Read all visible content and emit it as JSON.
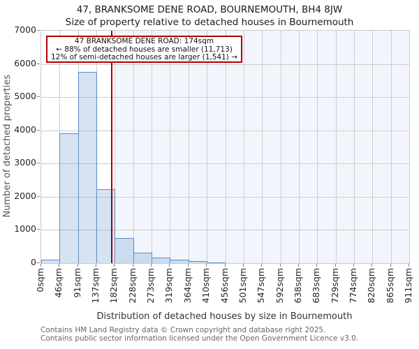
{
  "title": "47, BRANKSOME DENE ROAD, BOURNEMOUTH, BH4 8JW",
  "subtitle": "Size of property relative to detached houses in Bournemouth",
  "annotation": {
    "line1": "47 BRANKSOME DENE ROAD: 174sqm",
    "line2": "← 88% of detached houses are smaller (11,713)",
    "line3": "12% of semi-detached houses are larger (1,541) →"
  },
  "chart_data": {
    "type": "bar",
    "title": "47, BRANKSOME DENE ROAD, BOURNEMOUTH, BH4 8JW — Size of property relative to detached houses in Bournemouth",
    "xlabel": "Distribution of detached houses by size in Bournemouth",
    "ylabel": "Number of detached properties",
    "x_tick_labels": [
      "0sqm",
      "46sqm",
      "91sqm",
      "137sqm",
      "182sqm",
      "228sqm",
      "273sqm",
      "319sqm",
      "364sqm",
      "410sqm",
      "456sqm",
      "501sqm",
      "547sqm",
      "592sqm",
      "638sqm",
      "683sqm",
      "729sqm",
      "774sqm",
      "820sqm",
      "865sqm",
      "911sqm"
    ],
    "bin_edges_sqm": [
      0,
      46,
      91,
      137,
      182,
      228,
      273,
      319,
      364,
      410,
      456,
      501,
      547,
      592,
      638,
      683,
      729,
      774,
      820,
      865,
      911
    ],
    "categories": [
      "0-46",
      "46-91",
      "91-137",
      "137-182",
      "182-228",
      "228-273",
      "273-319",
      "319-364",
      "364-410",
      "410-456",
      "456-501",
      "501-547",
      "547-592",
      "592-638",
      "638-683",
      "683-729",
      "729-774",
      "774-820",
      "820-865",
      "865-911"
    ],
    "values": [
      100,
      3900,
      5770,
      2230,
      760,
      320,
      160,
      110,
      60,
      30,
      0,
      0,
      0,
      0,
      0,
      0,
      0,
      0,
      0,
      0
    ],
    "ylim": [
      0,
      7000
    ],
    "y_ticks": [
      0,
      1000,
      2000,
      3000,
      4000,
      5000,
      6000,
      7000
    ],
    "x_range_sqm": [
      0,
      911
    ],
    "grid": true,
    "legend": null,
    "marker": {
      "value_sqm": 174,
      "label": "47 BRANKSOME DENE ROAD: 174sqm"
    },
    "shade_from_sqm": 182,
    "colors": {
      "bar_fill": "#dce6f2",
      "bar_edge": "#5b8cc4",
      "marker_line": "#aa0000",
      "annotation_border": "#b00000",
      "shade": "#f2f6fc",
      "grid": "#cccccc"
    }
  },
  "footer": {
    "line1": "Contains HM Land Registry data © Crown copyright and database right 2025.",
    "line2": "Contains public sector information licensed under the Open Government Licence v3.0."
  }
}
